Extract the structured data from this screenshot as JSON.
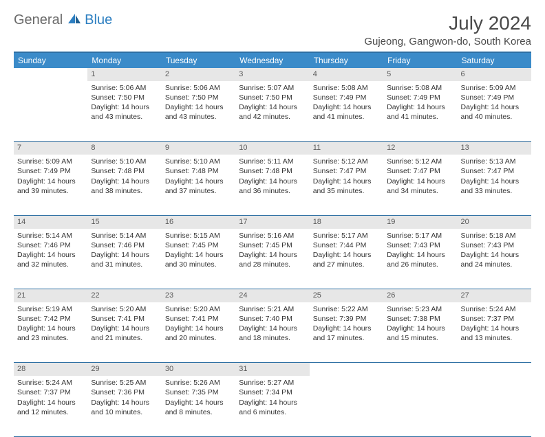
{
  "logo": {
    "part1": "General",
    "part2": "Blue"
  },
  "title": "July 2024",
  "location": "Gujeong, Gangwon-do, South Korea",
  "colors": {
    "header_bg": "#3b8bc9",
    "header_border": "#2d6fa3",
    "daynum_bg": "#e7e7e7",
    "text": "#333333",
    "logo_gray": "#6a6a6a",
    "logo_blue": "#2d7fc1"
  },
  "weekdays": [
    "Sunday",
    "Monday",
    "Tuesday",
    "Wednesday",
    "Thursday",
    "Friday",
    "Saturday"
  ],
  "weeks": [
    {
      "nums": [
        "",
        "1",
        "2",
        "3",
        "4",
        "5",
        "6"
      ],
      "cells": [
        {
          "empty": true
        },
        {
          "sunrise": "Sunrise: 5:06 AM",
          "sunset": "Sunset: 7:50 PM",
          "day1": "Daylight: 14 hours",
          "day2": "and 43 minutes."
        },
        {
          "sunrise": "Sunrise: 5:06 AM",
          "sunset": "Sunset: 7:50 PM",
          "day1": "Daylight: 14 hours",
          "day2": "and 43 minutes."
        },
        {
          "sunrise": "Sunrise: 5:07 AM",
          "sunset": "Sunset: 7:50 PM",
          "day1": "Daylight: 14 hours",
          "day2": "and 42 minutes."
        },
        {
          "sunrise": "Sunrise: 5:08 AM",
          "sunset": "Sunset: 7:49 PM",
          "day1": "Daylight: 14 hours",
          "day2": "and 41 minutes."
        },
        {
          "sunrise": "Sunrise: 5:08 AM",
          "sunset": "Sunset: 7:49 PM",
          "day1": "Daylight: 14 hours",
          "day2": "and 41 minutes."
        },
        {
          "sunrise": "Sunrise: 5:09 AM",
          "sunset": "Sunset: 7:49 PM",
          "day1": "Daylight: 14 hours",
          "day2": "and 40 minutes."
        }
      ]
    },
    {
      "nums": [
        "7",
        "8",
        "9",
        "10",
        "11",
        "12",
        "13"
      ],
      "cells": [
        {
          "sunrise": "Sunrise: 5:09 AM",
          "sunset": "Sunset: 7:49 PM",
          "day1": "Daylight: 14 hours",
          "day2": "and 39 minutes."
        },
        {
          "sunrise": "Sunrise: 5:10 AM",
          "sunset": "Sunset: 7:48 PM",
          "day1": "Daylight: 14 hours",
          "day2": "and 38 minutes."
        },
        {
          "sunrise": "Sunrise: 5:10 AM",
          "sunset": "Sunset: 7:48 PM",
          "day1": "Daylight: 14 hours",
          "day2": "and 37 minutes."
        },
        {
          "sunrise": "Sunrise: 5:11 AM",
          "sunset": "Sunset: 7:48 PM",
          "day1": "Daylight: 14 hours",
          "day2": "and 36 minutes."
        },
        {
          "sunrise": "Sunrise: 5:12 AM",
          "sunset": "Sunset: 7:47 PM",
          "day1": "Daylight: 14 hours",
          "day2": "and 35 minutes."
        },
        {
          "sunrise": "Sunrise: 5:12 AM",
          "sunset": "Sunset: 7:47 PM",
          "day1": "Daylight: 14 hours",
          "day2": "and 34 minutes."
        },
        {
          "sunrise": "Sunrise: 5:13 AM",
          "sunset": "Sunset: 7:47 PM",
          "day1": "Daylight: 14 hours",
          "day2": "and 33 minutes."
        }
      ]
    },
    {
      "nums": [
        "14",
        "15",
        "16",
        "17",
        "18",
        "19",
        "20"
      ],
      "cells": [
        {
          "sunrise": "Sunrise: 5:14 AM",
          "sunset": "Sunset: 7:46 PM",
          "day1": "Daylight: 14 hours",
          "day2": "and 32 minutes."
        },
        {
          "sunrise": "Sunrise: 5:14 AM",
          "sunset": "Sunset: 7:46 PM",
          "day1": "Daylight: 14 hours",
          "day2": "and 31 minutes."
        },
        {
          "sunrise": "Sunrise: 5:15 AM",
          "sunset": "Sunset: 7:45 PM",
          "day1": "Daylight: 14 hours",
          "day2": "and 30 minutes."
        },
        {
          "sunrise": "Sunrise: 5:16 AM",
          "sunset": "Sunset: 7:45 PM",
          "day1": "Daylight: 14 hours",
          "day2": "and 28 minutes."
        },
        {
          "sunrise": "Sunrise: 5:17 AM",
          "sunset": "Sunset: 7:44 PM",
          "day1": "Daylight: 14 hours",
          "day2": "and 27 minutes."
        },
        {
          "sunrise": "Sunrise: 5:17 AM",
          "sunset": "Sunset: 7:43 PM",
          "day1": "Daylight: 14 hours",
          "day2": "and 26 minutes."
        },
        {
          "sunrise": "Sunrise: 5:18 AM",
          "sunset": "Sunset: 7:43 PM",
          "day1": "Daylight: 14 hours",
          "day2": "and 24 minutes."
        }
      ]
    },
    {
      "nums": [
        "21",
        "22",
        "23",
        "24",
        "25",
        "26",
        "27"
      ],
      "cells": [
        {
          "sunrise": "Sunrise: 5:19 AM",
          "sunset": "Sunset: 7:42 PM",
          "day1": "Daylight: 14 hours",
          "day2": "and 23 minutes."
        },
        {
          "sunrise": "Sunrise: 5:20 AM",
          "sunset": "Sunset: 7:41 PM",
          "day1": "Daylight: 14 hours",
          "day2": "and 21 minutes."
        },
        {
          "sunrise": "Sunrise: 5:20 AM",
          "sunset": "Sunset: 7:41 PM",
          "day1": "Daylight: 14 hours",
          "day2": "and 20 minutes."
        },
        {
          "sunrise": "Sunrise: 5:21 AM",
          "sunset": "Sunset: 7:40 PM",
          "day1": "Daylight: 14 hours",
          "day2": "and 18 minutes."
        },
        {
          "sunrise": "Sunrise: 5:22 AM",
          "sunset": "Sunset: 7:39 PM",
          "day1": "Daylight: 14 hours",
          "day2": "and 17 minutes."
        },
        {
          "sunrise": "Sunrise: 5:23 AM",
          "sunset": "Sunset: 7:38 PM",
          "day1": "Daylight: 14 hours",
          "day2": "and 15 minutes."
        },
        {
          "sunrise": "Sunrise: 5:24 AM",
          "sunset": "Sunset: 7:37 PM",
          "day1": "Daylight: 14 hours",
          "day2": "and 13 minutes."
        }
      ]
    },
    {
      "nums": [
        "28",
        "29",
        "30",
        "31",
        "",
        "",
        ""
      ],
      "cells": [
        {
          "sunrise": "Sunrise: 5:24 AM",
          "sunset": "Sunset: 7:37 PM",
          "day1": "Daylight: 14 hours",
          "day2": "and 12 minutes."
        },
        {
          "sunrise": "Sunrise: 5:25 AM",
          "sunset": "Sunset: 7:36 PM",
          "day1": "Daylight: 14 hours",
          "day2": "and 10 minutes."
        },
        {
          "sunrise": "Sunrise: 5:26 AM",
          "sunset": "Sunset: 7:35 PM",
          "day1": "Daylight: 14 hours",
          "day2": "and 8 minutes."
        },
        {
          "sunrise": "Sunrise: 5:27 AM",
          "sunset": "Sunset: 7:34 PM",
          "day1": "Daylight: 14 hours",
          "day2": "and 6 minutes."
        },
        {
          "empty": true
        },
        {
          "empty": true
        },
        {
          "empty": true
        }
      ]
    }
  ]
}
